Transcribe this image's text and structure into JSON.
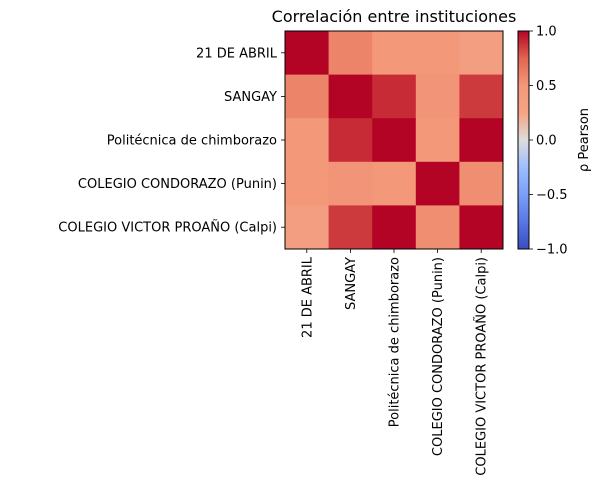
{
  "chart_data": {
    "type": "heatmap",
    "title": "Correlación entre instituciones",
    "row_labels": [
      "21 DE ABRIL",
      "SANGAY",
      "Politécnica de chimborazo",
      "COLEGIO CONDORAZO (Punin)",
      "COLEGIO VICTOR PROAÑO (Calpi)"
    ],
    "col_labels": [
      "21 DE ABRIL",
      "SANGAY",
      "Politécnica de chimborazo",
      "COLEGIO CONDORAZO (Punin)",
      "COLEGIO VICTOR PROAÑO (Calpi)"
    ],
    "values": [
      [
        1.0,
        0.6,
        0.5,
        0.5,
        0.45
      ],
      [
        0.6,
        1.0,
        0.9,
        0.52,
        0.86
      ],
      [
        0.5,
        0.9,
        1.0,
        0.5,
        1.0
      ],
      [
        0.5,
        0.52,
        0.5,
        1.0,
        0.55
      ],
      [
        0.45,
        0.86,
        1.0,
        0.55,
        1.0
      ]
    ],
    "colormap": "coolwarm",
    "vmin": -1.0,
    "vmax": 1.0,
    "colorbar": {
      "label": "ρ Pearson",
      "ticks": [
        "1.0",
        "0.5",
        "0.0",
        "−0.5",
        "−1.0"
      ],
      "tick_values": [
        1.0,
        0.5,
        0.0,
        -0.5,
        -1.0
      ]
    }
  }
}
